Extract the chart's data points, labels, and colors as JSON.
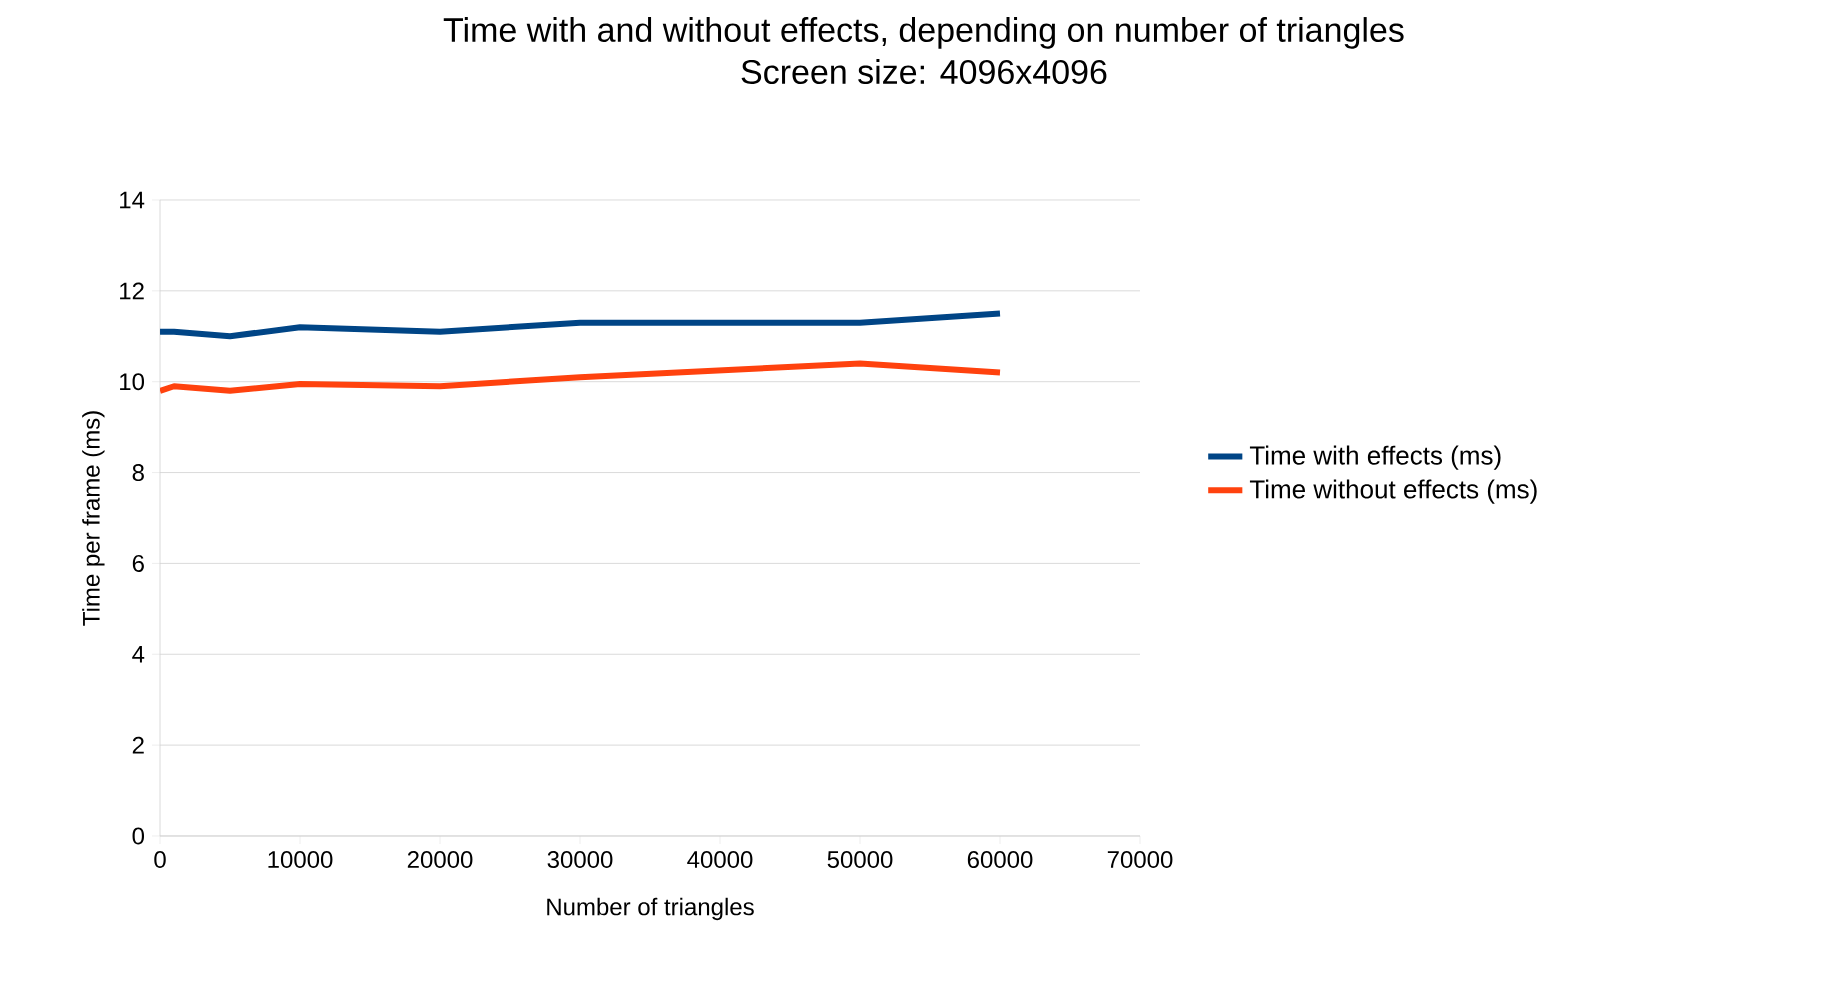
{
  "chart_data": {
    "type": "line",
    "title": "Time with and without effects, depending on number of triangles",
    "subtitle": "Screen size: 4096x4096",
    "xlabel": "Number of triangles",
    "ylabel": "Time per frame (ms)",
    "x": [
      0,
      1000,
      5000,
      10000,
      20000,
      30000,
      40000,
      50000,
      60000
    ],
    "series": [
      {
        "name": "Time with effects (ms)",
        "color": "#004586",
        "values": [
          11.1,
          11.1,
          11.0,
          11.2,
          11.1,
          11.3,
          11.3,
          11.3,
          11.5
        ]
      },
      {
        "name": "Time without effects (ms)",
        "color": "#ff420e",
        "values": [
          9.8,
          9.9,
          9.8,
          9.95,
          9.9,
          10.1,
          10.25,
          10.4,
          10.2
        ]
      }
    ],
    "xlim": [
      0,
      70000
    ],
    "xticks": [
      0,
      10000,
      20000,
      30000,
      40000,
      50000,
      60000,
      70000
    ],
    "ylim": [
      0,
      14
    ],
    "yticks": [
      0,
      2,
      4,
      6,
      8,
      10,
      12,
      14
    ],
    "grid": "y",
    "legend": "right",
    "marker": "none",
    "line_style": "solid"
  }
}
